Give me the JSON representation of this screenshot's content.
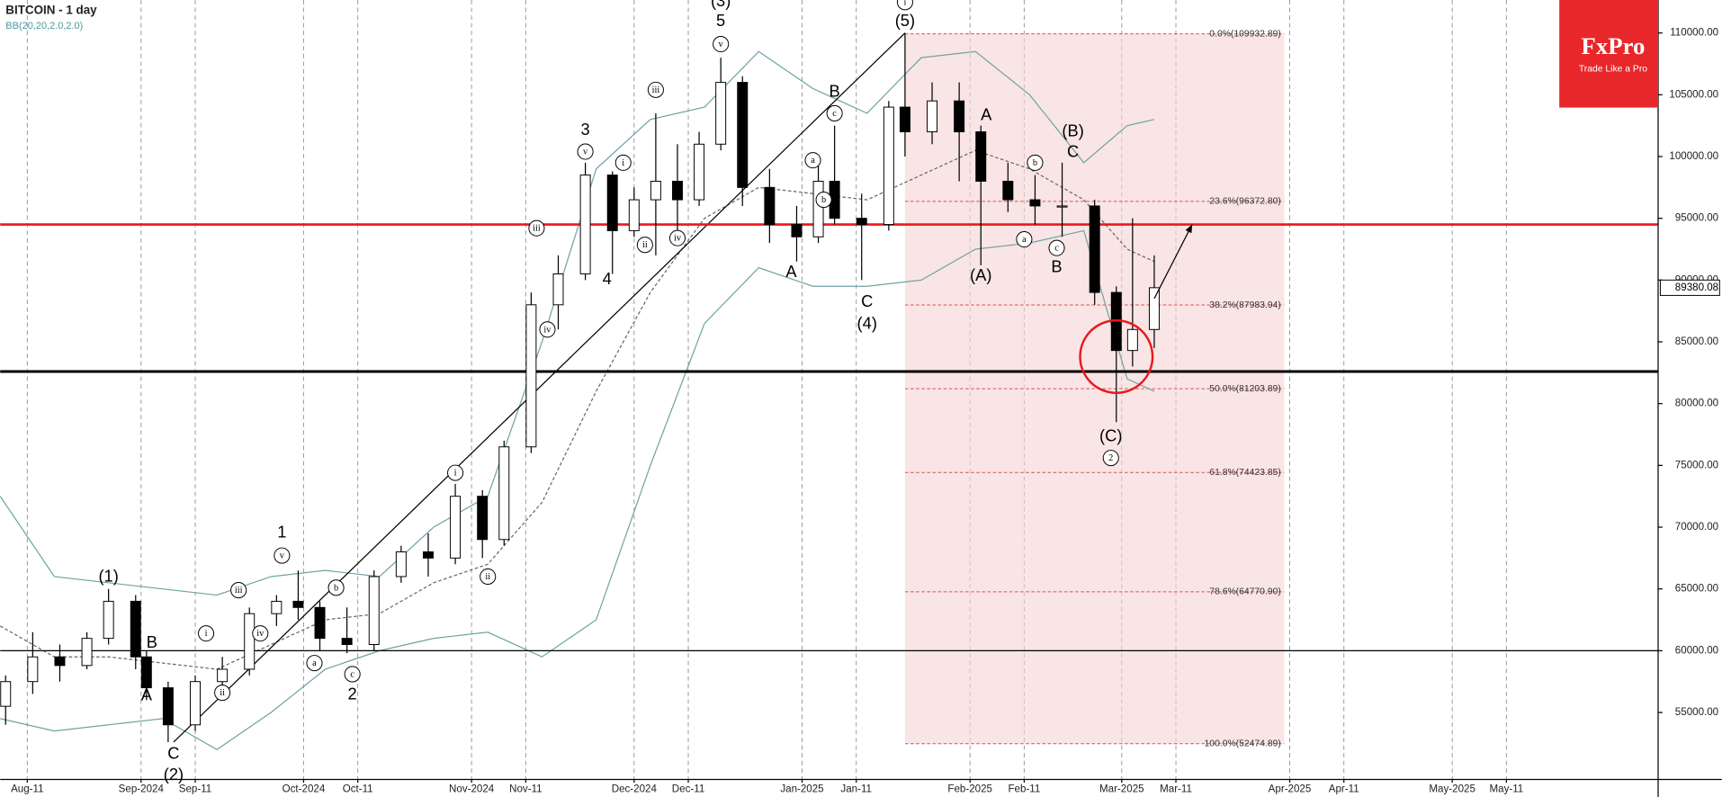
{
  "chart_data": {
    "type": "candlestick",
    "title": "BITCOIN - 1 day",
    "subtitle": "BB(20,20,2.0,2.0)",
    "logo": {
      "name": "FxPro",
      "tagline": "Trade Like a Pro"
    },
    "xlim": [
      "2024-08-06",
      "2025-06-08"
    ],
    "xticks": [
      {
        "value": "2024-08-11",
        "label": "Aug-11"
      },
      {
        "value": "2024-09-01",
        "label": "Sep-2024"
      },
      {
        "value": "2024-09-11",
        "label": "Sep-11"
      },
      {
        "value": "2024-10-01",
        "label": "Oct-2024"
      },
      {
        "value": "2024-10-11",
        "label": "Oct-11"
      },
      {
        "value": "2024-11-01",
        "label": "Nov-2024"
      },
      {
        "value": "2024-11-11",
        "label": "Nov-11"
      },
      {
        "value": "2024-12-01",
        "label": "Dec-2024"
      },
      {
        "value": "2024-12-11",
        "label": "Dec-11"
      },
      {
        "value": "2025-01-01",
        "label": "Jan-2025"
      },
      {
        "value": "2025-01-11",
        "label": "Jan-11"
      },
      {
        "value": "2025-02-01",
        "label": "Feb-2025"
      },
      {
        "value": "2025-02-11",
        "label": "Feb-11"
      },
      {
        "value": "2025-03-01",
        "label": "Mar-2025"
      },
      {
        "value": "2025-03-11",
        "label": "Mar-11"
      },
      {
        "value": "2025-04-01",
        "label": "Apr-2025"
      },
      {
        "value": "2025-04-11",
        "label": "Apr-11"
      },
      {
        "value": "2025-05-01",
        "label": "May-2025"
      },
      {
        "value": "2025-05-11",
        "label": "May-11"
      }
    ],
    "ylim": [
      49580,
      112670
    ],
    "yticks": [
      {
        "value": 55000,
        "label": "55000.00"
      },
      {
        "value": 60000,
        "label": "60000.00"
      },
      {
        "value": 65000,
        "label": "65000.00"
      },
      {
        "value": 70000,
        "label": "70000.00"
      },
      {
        "value": 75000,
        "label": "75000.00"
      },
      {
        "value": 80000,
        "label": "80000.00"
      },
      {
        "value": 85000,
        "label": "85000.00"
      },
      {
        "value": 90000,
        "label": "90000.00"
      },
      {
        "value": 95000,
        "label": "95000.00"
      },
      {
        "value": 100000,
        "label": "100000.00"
      },
      {
        "value": 105000,
        "label": "105000.00"
      },
      {
        "value": 110000,
        "label": "110000.00"
      }
    ],
    "last_price": 89380.08,
    "candles": {
      "x": [
        "2024-08-07",
        "2024-08-12",
        "2024-08-17",
        "2024-08-22",
        "2024-08-26",
        "2024-08-31",
        "2024-09-02",
        "2024-09-06",
        "2024-09-11",
        "2024-09-16",
        "2024-09-21",
        "2024-09-26",
        "2024-09-30",
        "2024-10-04",
        "2024-10-09",
        "2024-10-14",
        "2024-10-19",
        "2024-10-24",
        "2024-10-29",
        "2024-11-03",
        "2024-11-07",
        "2024-11-12",
        "2024-11-17",
        "2024-11-22",
        "2024-11-27",
        "2024-12-01",
        "2024-12-05",
        "2024-12-09",
        "2024-12-13",
        "2024-12-17",
        "2024-12-21",
        "2024-12-26",
        "2024-12-31",
        "2025-01-04",
        "2025-01-07",
        "2025-01-12",
        "2025-01-17",
        "2025-01-20",
        "2025-01-25",
        "2025-01-30",
        "2025-02-03",
        "2025-02-08",
        "2025-02-13",
        "2025-02-18",
        "2025-02-24",
        "2025-02-28",
        "2025-03-03",
        "2025-03-07"
      ],
      "open": [
        55500,
        57500,
        59500,
        58800,
        61000,
        64000,
        59500,
        57000,
        54000,
        57500,
        58500,
        63000,
        64000,
        63500,
        61000,
        60500,
        66000,
        68000,
        67500,
        72500,
        69000,
        76500,
        88000,
        90500,
        98500,
        94000,
        96500,
        98000,
        96500,
        101000,
        106000,
        97500,
        94500,
        93500,
        98000,
        95000,
        94500,
        104000,
        102000,
        104500,
        102000,
        98000,
        96500,
        96000,
        96000,
        89000,
        84300,
        86000
      ],
      "high": [
        58000,
        61500,
        60500,
        61500,
        65000,
        64500,
        60000,
        57500,
        58000,
        59500,
        63500,
        64500,
        66500,
        64000,
        63500,
        66500,
        68500,
        69500,
        73500,
        73000,
        77000,
        89000,
        92000,
        99500,
        98800,
        97500,
        103500,
        101000,
        102000,
        108000,
        106500,
        99000,
        96000,
        99500,
        102500,
        97000,
        104500,
        110000,
        106000,
        106000,
        102500,
        99500,
        98500,
        99500,
        96500,
        89500,
        95000,
        92000
      ],
      "low": [
        54000,
        56500,
        57500,
        58500,
        60500,
        58500,
        56000,
        52600,
        53500,
        57000,
        58000,
        62000,
        62500,
        60000,
        59800,
        60000,
        65500,
        66000,
        67000,
        67500,
        68500,
        76000,
        86000,
        90000,
        90500,
        93500,
        92000,
        94000,
        96000,
        100500,
        96000,
        93000,
        91500,
        93000,
        94500,
        90000,
        94000,
        100000,
        101000,
        98000,
        91200,
        95500,
        94500,
        93500,
        88000,
        78500,
        83000,
        84500
      ],
      "close": [
        57500,
        59500,
        58800,
        61000,
        64000,
        59500,
        57000,
        54000,
        57500,
        58500,
        63000,
        64000,
        63500,
        61000,
        60500,
        66000,
        68000,
        67500,
        72500,
        69000,
        76500,
        88000,
        90500,
        98500,
        94000,
        96500,
        98000,
        96500,
        101000,
        106000,
        97500,
        94500,
        93500,
        98000,
        95000,
        94500,
        104000,
        102000,
        104500,
        102000,
        98000,
        96500,
        96000,
        96000,
        89000,
        84300,
        86000,
        89380.08
      ]
    },
    "bands": {
      "x": [
        "2024-08-06",
        "2024-08-16",
        "2024-08-26",
        "2024-09-05",
        "2024-09-15",
        "2024-09-25",
        "2024-10-05",
        "2024-10-15",
        "2024-10-25",
        "2024-11-04",
        "2024-11-14",
        "2024-11-24",
        "2024-12-04",
        "2024-12-14",
        "2024-12-24",
        "2025-01-03",
        "2025-01-13",
        "2025-01-23",
        "2025-02-02",
        "2025-02-12",
        "2025-02-22",
        "2025-03-02",
        "2025-03-07"
      ],
      "series": [
        {
          "color": "#6fa3a5",
          "values": [
            72500,
            66000,
            65500,
            65000,
            64500,
            66000,
            66500,
            66000,
            70000,
            72500,
            85000,
            99000,
            103000,
            104000,
            108500,
            105500,
            103500,
            108000,
            108500,
            105000,
            99500,
            102500,
            103000
          ]
        },
        {
          "color": "#666666",
          "dashed": true,
          "values": [
            62000,
            59500,
            59500,
            59000,
            58500,
            60500,
            62500,
            63000,
            65500,
            67000,
            72000,
            81000,
            89000,
            95000,
            97500,
            97000,
            96500,
            98500,
            100500,
            99000,
            96500,
            92500,
            91500
          ]
        },
        {
          "color": "#6fa3a5",
          "values": [
            54500,
            53500,
            54000,
            54500,
            52000,
            55000,
            58500,
            60000,
            61000,
            61500,
            59500,
            62500,
            75000,
            86500,
            91000,
            89500,
            89500,
            90000,
            92500,
            93000,
            94000,
            82000,
            81000
          ]
        }
      ]
    },
    "hlines": [
      {
        "value": 94500,
        "color": "#e8191e",
        "width": 2.2
      },
      {
        "value": 82600,
        "color": "#000000",
        "width": 2.5
      },
      {
        "value": 60000,
        "color": "#000000",
        "width": 1
      }
    ],
    "fib": {
      "x": [
        "2025-01-20",
        "2025-03-31"
      ],
      "levels": [
        {
          "value": 109932.89,
          "label": "0.0%(109932.89)"
        },
        {
          "value": 96372.8,
          "label": "23.6%(96372.80)"
        },
        {
          "value": 87983.94,
          "label": "38.2%(87983.94)"
        },
        {
          "value": 81203.89,
          "label": "50.0%(81203.89)"
        },
        {
          "value": 74423.85,
          "label": "61.8%(74423.85)"
        },
        {
          "value": 64770.9,
          "label": "78.6%(64770.90)"
        },
        {
          "value": 52474.89,
          "label": "100.0%(52474.89)"
        }
      ]
    },
    "trendline": {
      "x": [
        "2024-09-07",
        "2025-01-20"
      ],
      "y": [
        52600,
        110000
      ]
    },
    "arrow": {
      "x": [
        "2025-03-07",
        "2025-03-14"
      ],
      "y": [
        88500,
        94500
      ]
    },
    "circle": {
      "x": "2025-02-28",
      "y": 83800
    },
    "annotations": [
      {
        "x": "2024-08-26",
        "y": 65930,
        "text": "(1)"
      },
      {
        "x": "2024-09-03",
        "y": 60600,
        "text": "B"
      },
      {
        "x": "2024-09-02",
        "y": 56330,
        "text": "A"
      },
      {
        "x": "2024-09-07",
        "y": 51620,
        "text": "C"
      },
      {
        "x": "2024-09-07",
        "y": 49900,
        "text": "(2)"
      },
      {
        "x": "2024-09-13",
        "y": 61400,
        "text": "i",
        "circled": true
      },
      {
        "x": "2024-09-16",
        "y": 56600,
        "text": "ii",
        "circled": true
      },
      {
        "x": "2024-09-19",
        "y": 64900,
        "text": "iii",
        "circled": true
      },
      {
        "x": "2024-09-23",
        "y": 61400,
        "text": "iv",
        "circled": true
      },
      {
        "x": "2024-09-27",
        "y": 67700,
        "text": "v",
        "circled": true
      },
      {
        "x": "2024-09-27",
        "y": 69500,
        "text": "1"
      },
      {
        "x": "2024-10-03",
        "y": 59000,
        "text": "a",
        "circled": true
      },
      {
        "x": "2024-10-07",
        "y": 65100,
        "text": "b",
        "circled": true
      },
      {
        "x": "2024-10-10",
        "y": 58100,
        "text": "c",
        "circled": true
      },
      {
        "x": "2024-10-10",
        "y": 56400,
        "text": "2"
      },
      {
        "x": "2024-10-29",
        "y": 74400,
        "text": "i",
        "circled": true
      },
      {
        "x": "2024-11-04",
        "y": 66000,
        "text": "ii",
        "circled": true
      },
      {
        "x": "2024-11-13",
        "y": 94200,
        "text": "iii",
        "circled": true
      },
      {
        "x": "2024-11-15",
        "y": 86000,
        "text": "iv",
        "circled": true
      },
      {
        "x": "2024-11-22",
        "y": 102100,
        "text": "3"
      },
      {
        "x": "2024-11-22",
        "y": 100400,
        "text": "v",
        "circled": true
      },
      {
        "x": "2024-11-26",
        "y": 90000,
        "text": "4"
      },
      {
        "x": "2024-11-29",
        "y": 99500,
        "text": "i",
        "circled": true
      },
      {
        "x": "2024-12-03",
        "y": 92850,
        "text": "ii",
        "circled": true
      },
      {
        "x": "2024-12-05",
        "y": 105400,
        "text": "iii",
        "circled": true
      },
      {
        "x": "2024-12-09",
        "y": 93400,
        "text": "iv",
        "circled": true
      },
      {
        "x": "2024-12-17",
        "y": 109100,
        "text": "v",
        "circled": true
      },
      {
        "x": "2024-12-17",
        "y": 110900,
        "text": "5"
      },
      {
        "x": "2024-12-17",
        "y": 112500,
        "text": "(3)"
      },
      {
        "x": "2024-12-30",
        "y": 90600,
        "text": "A"
      },
      {
        "x": "2025-01-03",
        "y": 99700,
        "text": "a",
        "circled": true
      },
      {
        "x": "2025-01-05",
        "y": 96500,
        "text": "b",
        "circled": true
      },
      {
        "x": "2025-01-07",
        "y": 105200,
        "text": "B"
      },
      {
        "x": "2025-01-07",
        "y": 103500,
        "text": "c",
        "circled": true
      },
      {
        "x": "2025-01-13",
        "y": 88200,
        "text": "C"
      },
      {
        "x": "2025-01-13",
        "y": 86400,
        "text": "(4)"
      },
      {
        "x": "2025-01-20",
        "y": 110900,
        "text": "(5)"
      },
      {
        "x": "2025-01-20",
        "y": 112500,
        "text": "i",
        "circled": true
      },
      {
        "x": "2025-02-04",
        "y": 103300,
        "text": "A"
      },
      {
        "x": "2025-02-03",
        "y": 90300,
        "text": "(A)"
      },
      {
        "x": "2025-02-11",
        "y": 93300,
        "text": "a",
        "circled": true
      },
      {
        "x": "2025-02-13",
        "y": 99500,
        "text": "b",
        "circled": true
      },
      {
        "x": "2025-02-17",
        "y": 92600,
        "text": "c",
        "circled": true
      },
      {
        "x": "2025-02-17",
        "y": 91000,
        "text": "B"
      },
      {
        "x": "2025-02-20",
        "y": 102000,
        "text": "(B)"
      },
      {
        "x": "2025-02-20",
        "y": 100300,
        "text": "C"
      },
      {
        "x": "2025-02-27",
        "y": 77300,
        "text": "(C)"
      },
      {
        "x": "2025-02-27",
        "y": 75600,
        "text": "2",
        "circled": true
      }
    ]
  }
}
